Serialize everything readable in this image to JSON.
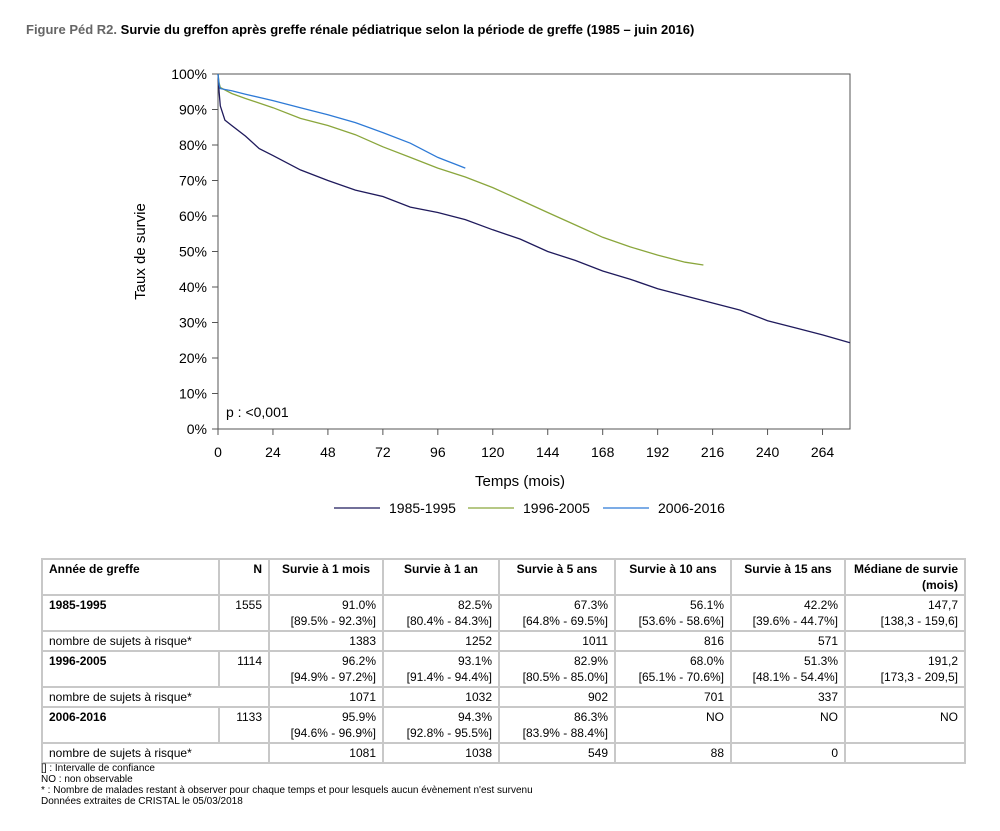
{
  "figure": {
    "label": "Figure Péd R2.",
    "title": "Survie du greffon après greffe rénale pédiatrique selon la période de greffe (1985 – juin 2016)"
  },
  "chart_data": {
    "type": "line",
    "title": "",
    "xlabel": "Temps (mois)",
    "ylabel": "Taux de survie",
    "xlim": [
      0,
      276
    ],
    "ylim": [
      0,
      100
    ],
    "x_ticks": [
      "0",
      "24",
      "48",
      "72",
      "96",
      "120",
      "144",
      "168",
      "192",
      "216",
      "240",
      "264"
    ],
    "y_ticks": [
      "0%",
      "10%",
      "20%",
      "30%",
      "40%",
      "50%",
      "60%",
      "70%",
      "80%",
      "90%",
      "100%"
    ],
    "annotation": "p : <0,001",
    "legend_position": "bottom",
    "grid": false,
    "series": [
      {
        "name": "1985-1995",
        "color": "#1f1a5c",
        "points": [
          [
            0,
            100
          ],
          [
            0.5,
            95
          ],
          [
            1,
            91
          ],
          [
            3,
            87
          ],
          [
            6,
            85.5
          ],
          [
            12,
            82.5
          ],
          [
            18,
            79
          ],
          [
            24,
            77
          ],
          [
            36,
            73
          ],
          [
            48,
            70
          ],
          [
            60,
            67.3
          ],
          [
            72,
            65.5
          ],
          [
            84,
            62.5
          ],
          [
            96,
            61
          ],
          [
            108,
            59
          ],
          [
            120,
            56.1
          ],
          [
            132,
            53.5
          ],
          [
            144,
            50
          ],
          [
            156,
            47.5
          ],
          [
            168,
            44.5
          ],
          [
            180,
            42.2
          ],
          [
            192,
            39.5
          ],
          [
            204,
            37.5
          ],
          [
            216,
            35.5
          ],
          [
            228,
            33.5
          ],
          [
            240,
            30.5
          ],
          [
            252,
            28.5
          ],
          [
            264,
            26.5
          ],
          [
            276,
            24.3
          ]
        ]
      },
      {
        "name": "1996-2005",
        "color": "#8aa63c",
        "points": [
          [
            0,
            100
          ],
          [
            0.5,
            97.5
          ],
          [
            1,
            96.2
          ],
          [
            6,
            94.5
          ],
          [
            12,
            93.1
          ],
          [
            24,
            90.5
          ],
          [
            36,
            87.5
          ],
          [
            48,
            85.5
          ],
          [
            60,
            82.9
          ],
          [
            72,
            79.5
          ],
          [
            84,
            76.5
          ],
          [
            96,
            73.5
          ],
          [
            108,
            71
          ],
          [
            120,
            68
          ],
          [
            132,
            64.5
          ],
          [
            144,
            61
          ],
          [
            156,
            57.5
          ],
          [
            168,
            54
          ],
          [
            180,
            51.3
          ],
          [
            192,
            49
          ],
          [
            204,
            47
          ],
          [
            212,
            46.2
          ]
        ]
      },
      {
        "name": "2006-2016",
        "color": "#2e7ad6",
        "points": [
          [
            0,
            100
          ],
          [
            0.5,
            97
          ],
          [
            1,
            95.9
          ],
          [
            6,
            95.3
          ],
          [
            12,
            94.3
          ],
          [
            24,
            92.5
          ],
          [
            36,
            90.5
          ],
          [
            48,
            88.5
          ],
          [
            60,
            86.3
          ],
          [
            72,
            83.5
          ],
          [
            84,
            80.5
          ],
          [
            96,
            76.5
          ],
          [
            100,
            75.5
          ],
          [
            104,
            74.5
          ],
          [
            108,
            73.5
          ]
        ]
      }
    ]
  },
  "table": {
    "headers": [
      "Année de greffe",
      "N",
      "Survie à 1 mois",
      "Survie à 1 an",
      "Survie à 5 ans",
      "Survie à 10 ans",
      "Survie à 15 ans",
      "Médiane de survie (mois)"
    ],
    "groups": [
      {
        "label": "1985-1995",
        "n": "1555",
        "values": [
          "91.0%",
          "82.5%",
          "67.3%",
          "56.1%",
          "42.2%",
          "147,7"
        ],
        "ci": [
          "[89.5% - 92.3%]",
          "[80.4% - 84.3%]",
          "[64.8% - 69.5%]",
          "[53.6% - 58.6%]",
          "[39.6% - 44.7%]",
          "[138,3 - 159,6]"
        ],
        "risk_label": "nombre de sujets à risque*",
        "risk": [
          "1383",
          "1252",
          "1011",
          "816",
          "571",
          ""
        ]
      },
      {
        "label": "1996-2005",
        "n": "1114",
        "values": [
          "96.2%",
          "93.1%",
          "82.9%",
          "68.0%",
          "51.3%",
          "191,2"
        ],
        "ci": [
          "[94.9% - 97.2%]",
          "[91.4% - 94.4%]",
          "[80.5% - 85.0%]",
          "[65.1% - 70.6%]",
          "[48.1% - 54.4%]",
          "[173,3 - 209,5]"
        ],
        "risk_label": "nombre de sujets à risque*",
        "risk": [
          "1071",
          "1032",
          "902",
          "701",
          "337",
          ""
        ]
      },
      {
        "label": "2006-2016",
        "n": "1133",
        "values": [
          "95.9%",
          "94.3%",
          "86.3%",
          "NO",
          "NO",
          "NO"
        ],
        "ci": [
          "[94.6% - 96.9%]",
          "[92.8% - 95.5%]",
          "[83.9% - 88.4%]",
          "",
          "",
          ""
        ],
        "risk_label": "nombre de sujets à risque*",
        "risk": [
          "1081",
          "1038",
          "549",
          "88",
          "0",
          ""
        ]
      }
    ]
  },
  "notes": [
    "[] : Intervalle de confiance",
    "NO : non observable",
    "* : Nombre de malades restant à observer pour chaque temps et pour lesquels aucun évènement n'est survenu",
    "Données extraites de CRISTAL le 05/03/2018"
  ]
}
